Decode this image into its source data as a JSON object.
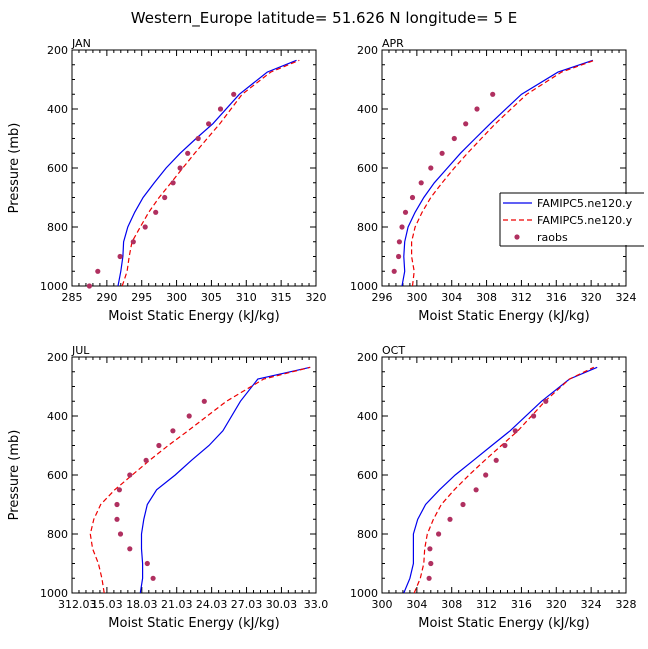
{
  "figure": {
    "title": "Western_Europe  latitude= 51.626 N longitude= 5 E"
  },
  "legend": {
    "entries": [
      {
        "label": "FAMIPC5.ne120.y",
        "color": "#0000ee",
        "style": "solid"
      },
      {
        "label": "FAMIPC5.ne120.y",
        "color": "#ee0000",
        "style": "dashed"
      },
      {
        "label": "raobs",
        "color": "#b03060",
        "style": "dot"
      }
    ]
  },
  "colors": {
    "model1": "#0000ee",
    "model2": "#ee0000",
    "raobs": "#b03060"
  },
  "chart_data": [
    {
      "type": "line",
      "title": "JAN",
      "xlabel": "Moist Static Energy (kJ/kg)",
      "ylabel": "Pressure (mb)",
      "xlim": [
        285,
        320
      ],
      "ylim": [
        1000,
        200
      ],
      "xticks": [
        285,
        290,
        295,
        300,
        305,
        310,
        315,
        320
      ],
      "xticklabels": [
        "285",
        "290",
        "295",
        "300",
        "305",
        "310",
        "315",
        "320"
      ],
      "yticks": [
        200,
        400,
        600,
        800,
        1000
      ],
      "yticklabels": [
        "200",
        "400",
        "600",
        "800",
        "1000"
      ],
      "series": [
        {
          "kind": "line",
          "color": "#0000ee",
          "dash": false,
          "x": [
            291.6,
            292.0,
            292.3,
            292.4,
            293.0,
            294.0,
            295.2,
            296.8,
            298.5,
            300.5,
            302.8,
            305.2,
            309.0,
            313.0,
            317.2
          ],
          "y": [
            1000,
            950,
            900,
            850,
            800,
            750,
            700,
            650,
            600,
            550,
            500,
            450,
            350,
            275,
            235
          ]
        },
        {
          "kind": "line",
          "color": "#ee0000",
          "dash": true,
          "x": [
            292.2,
            292.9,
            293.2,
            293.6,
            294.8,
            296.0,
            297.5,
            299.2,
            300.9,
            302.6,
            304.4,
            306.2,
            309.4,
            313.5,
            317.6
          ],
          "y": [
            1000,
            950,
            900,
            850,
            800,
            750,
            700,
            650,
            600,
            550,
            500,
            450,
            350,
            275,
            235
          ]
        },
        {
          "kind": "points",
          "color": "#b03060",
          "x": [
            287.5,
            288.7,
            291.9,
            293.8,
            295.5,
            297.0,
            298.3,
            299.5,
            300.5,
            301.6,
            303.1,
            304.6,
            306.3,
            308.2
          ],
          "y": [
            1000,
            950,
            900,
            850,
            800,
            750,
            700,
            650,
            600,
            550,
            500,
            450,
            400,
            350
          ]
        }
      ]
    },
    {
      "type": "line",
      "title": "APR",
      "xlabel": "Moist Static Energy (kJ/kg)",
      "ylabel": "",
      "xlim": [
        296,
        324
      ],
      "ylim": [
        1000,
        200
      ],
      "xticks": [
        296,
        300,
        304,
        308,
        312,
        316,
        320,
        324
      ],
      "xticklabels": [
        "296",
        "300",
        "304",
        "308",
        "312",
        "316",
        "320",
        "324"
      ],
      "yticks": [
        200,
        400,
        600,
        800,
        1000
      ],
      "yticklabels": [
        "200",
        "400",
        "600",
        "800",
        "1000"
      ],
      "series": [
        {
          "kind": "line",
          "color": "#0000ee",
          "dash": false,
          "x": [
            298.3,
            298.6,
            298.5,
            298.6,
            299.0,
            299.8,
            300.8,
            302.0,
            303.5,
            305.0,
            306.7,
            308.4,
            312.0,
            316.2,
            320.2
          ],
          "y": [
            1000,
            950,
            900,
            850,
            800,
            750,
            700,
            650,
            600,
            550,
            500,
            450,
            350,
            275,
            235
          ]
        },
        {
          "kind": "line",
          "color": "#ee0000",
          "dash": true,
          "x": [
            299.5,
            299.7,
            299.4,
            299.4,
            299.8,
            300.6,
            301.6,
            302.9,
            304.3,
            305.8,
            307.4,
            309.0,
            312.6,
            316.6,
            320.4
          ],
          "y": [
            1000,
            950,
            900,
            850,
            800,
            750,
            700,
            650,
            600,
            550,
            500,
            450,
            350,
            275,
            235
          ]
        },
        {
          "kind": "points",
          "color": "#b03060",
          "x": [
            297.4,
            297.9,
            298.0,
            298.3,
            298.7,
            299.5,
            300.5,
            301.6,
            302.9,
            304.3,
            305.6,
            306.9,
            308.7
          ],
          "y": [
            950,
            900,
            850,
            800,
            750,
            700,
            650,
            600,
            550,
            500,
            450,
            400,
            350
          ]
        }
      ]
    },
    {
      "type": "line",
      "title": "JUL",
      "xlabel": "Moist Static Energy (kJ/kg)",
      "ylabel": "Pressure (mb)",
      "xlim": [
        312.03,
        333.0
      ],
      "ylim": [
        1000,
        200
      ],
      "xticks": [
        312.03,
        315.03,
        318.03,
        321.03,
        324.03,
        327.03,
        330.03,
        333.0
      ],
      "xticklabels": [
        "312.03",
        "15.03",
        "18.03",
        "21.03",
        "24.03",
        "27.03",
        "30.03",
        "33.0"
      ],
      "yticks": [
        200,
        400,
        600,
        800,
        1000
      ],
      "yticklabels": [
        "200",
        "400",
        "600",
        "800",
        "1000"
      ],
      "series": [
        {
          "kind": "line",
          "color": "#0000ee",
          "dash": false,
          "x": [
            317.9,
            318.1,
            318.1,
            318.0,
            318.0,
            318.2,
            318.5,
            319.3,
            320.9,
            322.3,
            323.8,
            325.0,
            326.5,
            328.0,
            332.5
          ],
          "y": [
            1000,
            950,
            900,
            850,
            800,
            750,
            700,
            650,
            600,
            550,
            500,
            450,
            350,
            275,
            235
          ]
        },
        {
          "kind": "line",
          "color": "#ee0000",
          "dash": true,
          "x": [
            314.8,
            314.6,
            314.3,
            313.8,
            313.6,
            313.9,
            314.5,
            315.7,
            317.2,
            318.7,
            320.3,
            322.0,
            325.3,
            328.5,
            332.5
          ],
          "y": [
            1000,
            950,
            900,
            850,
            800,
            750,
            700,
            650,
            600,
            550,
            500,
            450,
            350,
            275,
            235
          ]
        },
        {
          "kind": "points",
          "color": "#b03060",
          "x": [
            319.0,
            318.5,
            317.0,
            316.2,
            315.9,
            315.9,
            316.1,
            317.0,
            318.4,
            319.5,
            320.7,
            322.1,
            323.4
          ],
          "y": [
            950,
            900,
            850,
            800,
            750,
            700,
            650,
            600,
            550,
            500,
            450,
            400,
            350
          ]
        }
      ]
    },
    {
      "type": "line",
      "title": "OCT",
      "xlabel": "Moist Static Energy (kJ/kg)",
      "ylabel": "",
      "xlim": [
        300,
        328
      ],
      "ylim": [
        1000,
        200
      ],
      "xticks": [
        300,
        304,
        308,
        312,
        316,
        320,
        324,
        328
      ],
      "xticklabels": [
        "300",
        "304",
        "308",
        "312",
        "316",
        "320",
        "324",
        "328"
      ],
      "yticks": [
        200,
        400,
        600,
        800,
        1000
      ],
      "yticklabels": [
        "200",
        "400",
        "600",
        "800",
        "1000"
      ],
      "series": [
        {
          "kind": "line",
          "color": "#0000ee",
          "dash": false,
          "x": [
            302.5,
            303.2,
            303.6,
            303.6,
            303.6,
            304.1,
            305.0,
            306.6,
            308.4,
            310.5,
            312.6,
            314.7,
            318.3,
            321.5,
            324.7
          ],
          "y": [
            1000,
            950,
            900,
            850,
            800,
            750,
            700,
            650,
            600,
            550,
            500,
            450,
            350,
            275,
            235
          ]
        },
        {
          "kind": "line",
          "color": "#ee0000",
          "dash": true,
          "x": [
            303.7,
            304.4,
            304.8,
            304.9,
            305.2,
            305.9,
            306.8,
            308.3,
            310.0,
            311.8,
            313.7,
            315.6,
            318.7,
            321.5,
            324.3
          ],
          "y": [
            1000,
            950,
            900,
            850,
            800,
            750,
            700,
            650,
            600,
            550,
            500,
            450,
            350,
            275,
            235
          ]
        },
        {
          "kind": "points",
          "color": "#b03060",
          "x": [
            305.4,
            305.6,
            305.5,
            306.5,
            307.8,
            309.3,
            310.8,
            311.9,
            313.1,
            314.1,
            315.3,
            317.4,
            318.8
          ],
          "y": [
            950,
            900,
            850,
            800,
            750,
            700,
            650,
            600,
            550,
            500,
            450,
            400,
            350
          ]
        }
      ]
    }
  ]
}
